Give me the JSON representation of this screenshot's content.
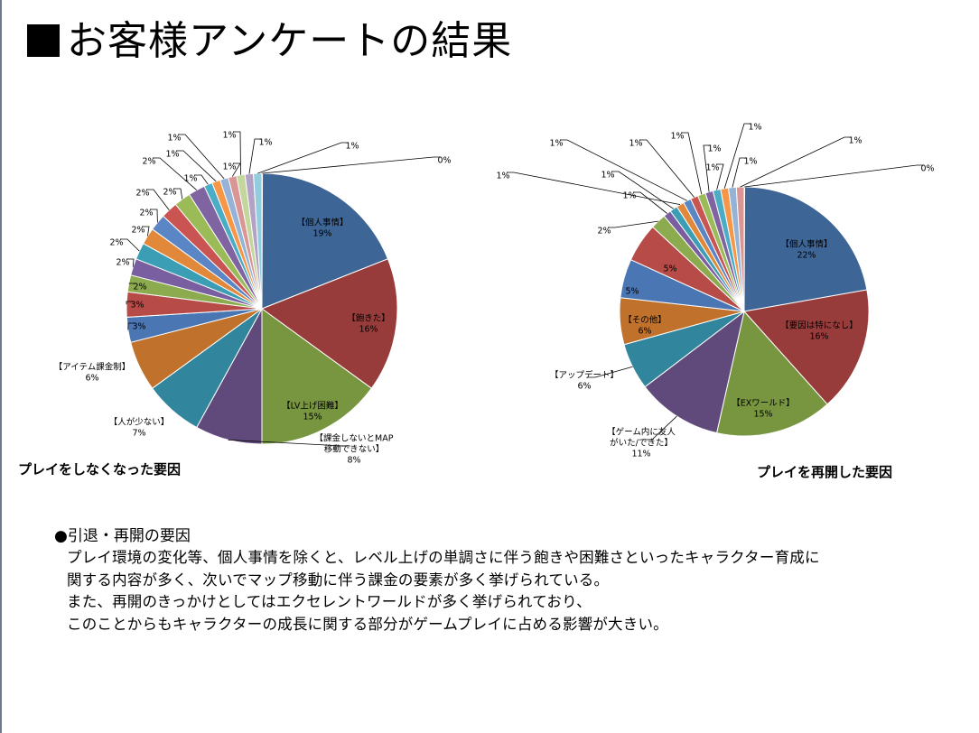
{
  "slide": {
    "title": "お客様アンケートの結果"
  },
  "charts": {
    "left_caption": "プレイをしなくなった要因",
    "right_caption": "プレイを再開した要因"
  },
  "notes": {
    "heading": "引退・再開の要因",
    "lines": [
      "プレイ環境の変化等、個人事情を除くと、レベル上げの単調さに伴う飽きや困難さといったキャラクター育成に",
      "関する内容が多く、次いでマップ移動に伴う課金の要素が多く挙げられている。",
      "また、再開のきっかけとしてはエクセレントワールドが多く挙げられており、",
      "このことからもキャラクターの成長に関する部分がゲームプレイに占める影響が大きい。"
    ]
  },
  "chart_data": [
    {
      "type": "pie",
      "title": "プレイをしなくなった要因",
      "slices": [
        {
          "label": "【個人事情】",
          "value": 19,
          "pct": "19%",
          "color": "#3d6596"
        },
        {
          "label": "【飽きた】",
          "value": 16,
          "pct": "16%",
          "color": "#973c3b"
        },
        {
          "label": "【LV上げ困難】",
          "value": 15,
          "pct": "15%",
          "color": "#789540"
        },
        {
          "label": "【課金しないとMAP 移動できない】",
          "value": 8,
          "pct": "8%",
          "color": "#604a7b"
        },
        {
          "label": "【人が少ない】",
          "value": 7,
          "pct": "7%",
          "color": "#31859c"
        },
        {
          "label": "【アイテム課金制】",
          "value": 6,
          "pct": "6%",
          "color": "#c0722c"
        },
        {
          "label": "",
          "value": 3,
          "pct": "3%",
          "color": "#4a76b3"
        },
        {
          "label": "",
          "value": 3,
          "pct": "3%",
          "color": "#b74b48"
        },
        {
          "label": "",
          "value": 2,
          "pct": "2%",
          "color": "#8cab4e"
        },
        {
          "label": "",
          "value": 2,
          "pct": "2%",
          "color": "#7a5fa0"
        },
        {
          "label": "",
          "value": 2,
          "pct": "2%",
          "color": "#3c9eb5"
        },
        {
          "label": "",
          "value": 2,
          "pct": "2%",
          "color": "#e2883a"
        },
        {
          "label": "",
          "value": 2,
          "pct": "2%",
          "color": "#5a86c5"
        },
        {
          "label": "",
          "value": 2,
          "pct": "2%",
          "color": "#c95451"
        },
        {
          "label": "",
          "value": 2,
          "pct": "2%",
          "color": "#9bbb59"
        },
        {
          "label": "",
          "value": 2,
          "pct": "2%",
          "color": "#8064a2"
        },
        {
          "label": "",
          "value": 1,
          "pct": "1%",
          "color": "#4bacc6"
        },
        {
          "label": "",
          "value": 1,
          "pct": "1%",
          "color": "#f79646"
        },
        {
          "label": "",
          "value": 1,
          "pct": "1%",
          "color": "#95b3d7"
        },
        {
          "label": "",
          "value": 1,
          "pct": "1%",
          "color": "#d99694"
        },
        {
          "label": "",
          "value": 1,
          "pct": "1%",
          "color": "#c3d69b"
        },
        {
          "label": "",
          "value": 1,
          "pct": "1%",
          "color": "#b3a2c7"
        },
        {
          "label": "",
          "value": 1,
          "pct": "1%",
          "color": "#93cddd"
        },
        {
          "label": "",
          "value": 0,
          "pct": "0%",
          "color": "#fac090"
        }
      ]
    },
    {
      "type": "pie",
      "title": "プレイを再開した要因",
      "slices": [
        {
          "label": "【個人事情】",
          "value": 22,
          "pct": "22%",
          "color": "#3d6596"
        },
        {
          "label": "【要因は特になし】",
          "value": 16,
          "pct": "16%",
          "color": "#973c3b"
        },
        {
          "label": "【EXワールド】",
          "value": 15,
          "pct": "15%",
          "color": "#789540"
        },
        {
          "label": "【ゲーム内に友人 がいた/できた】",
          "value": 11,
          "pct": "11%",
          "color": "#604a7b"
        },
        {
          "label": "【アップデート】",
          "value": 6,
          "pct": "6%",
          "color": "#31859c"
        },
        {
          "label": "【その他】",
          "value": 6,
          "pct": "6%",
          "color": "#c0722c"
        },
        {
          "label": "",
          "value": 5,
          "pct": "5%",
          "color": "#4a76b3"
        },
        {
          "label": "",
          "value": 5,
          "pct": "5%",
          "color": "#b74b48"
        },
        {
          "label": "",
          "value": 2,
          "pct": "2%",
          "color": "#8cab4e"
        },
        {
          "label": "",
          "value": 1,
          "pct": "1%",
          "color": "#7a5fa0"
        },
        {
          "label": "",
          "value": 1,
          "pct": "1%",
          "color": "#3c9eb5"
        },
        {
          "label": "",
          "value": 1,
          "pct": "1%",
          "color": "#e2883a"
        },
        {
          "label": "",
          "value": 1,
          "pct": "1%",
          "color": "#5a86c5"
        },
        {
          "label": "",
          "value": 1,
          "pct": "1%",
          "color": "#c95451"
        },
        {
          "label": "",
          "value": 1,
          "pct": "1%",
          "color": "#9bbb59"
        },
        {
          "label": "",
          "value": 1,
          "pct": "1%",
          "color": "#8064a2"
        },
        {
          "label": "",
          "value": 1,
          "pct": "1%",
          "color": "#4bacc6"
        },
        {
          "label": "",
          "value": 1,
          "pct": "1%",
          "color": "#f79646"
        },
        {
          "label": "",
          "value": 1,
          "pct": "1%",
          "color": "#95b3d7"
        },
        {
          "label": "",
          "value": 1,
          "pct": "1%",
          "color": "#d99694"
        },
        {
          "label": "",
          "value": 0,
          "pct": "0%",
          "color": "#c3d69b"
        }
      ]
    }
  ]
}
